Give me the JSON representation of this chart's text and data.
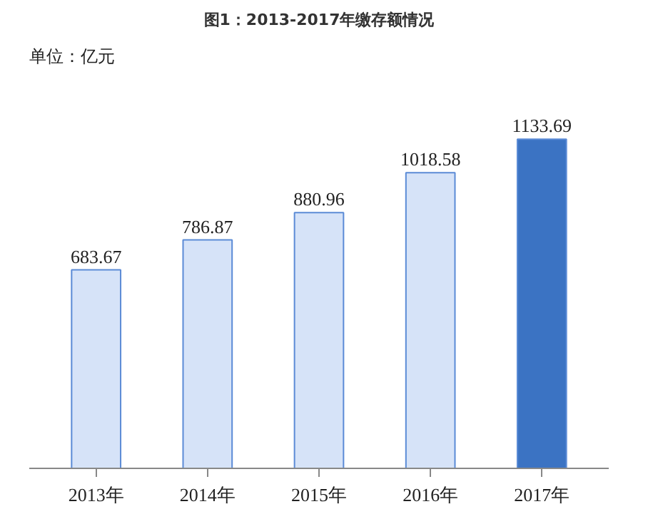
{
  "chart_data": {
    "type": "bar",
    "title": "图1：2013-2017年缴存额情况",
    "annotations": [
      "单位：亿元"
    ],
    "categories": [
      "2013年",
      "2014年",
      "2015年",
      "2016年",
      "2017年"
    ],
    "values": [
      683.67,
      786.87,
      880.96,
      1018.58,
      1133.69
    ],
    "colors": [
      "#d6e3f8",
      "#d6e3f8",
      "#d6e3f8",
      "#d6e3f8",
      "#3b73c3"
    ],
    "data_labels": true,
    "grid": false
  }
}
